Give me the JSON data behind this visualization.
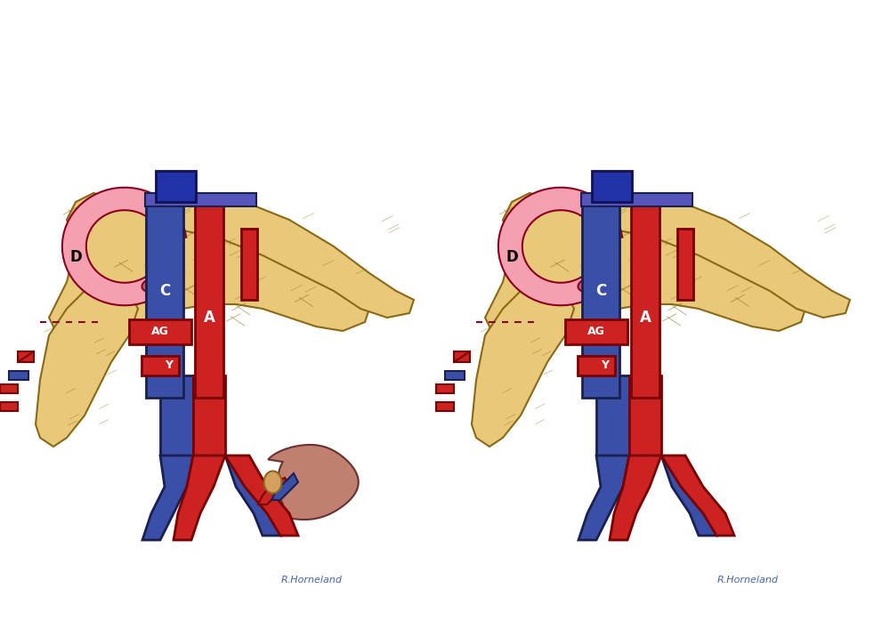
{
  "bg_color": "#ffffff",
  "fig_width": 10.0,
  "fig_height": 7.07,
  "dpi": 100,
  "pancreas_color": "#E8C97A",
  "pancreas_edge": "#8B6914",
  "duodenum_color": "#F4A0B0",
  "duodenum_edge": "#8B0020",
  "vena_cava_color": "#3A4FA8",
  "vena_cava_edge": "#1A2050",
  "aorta_color": "#CC2222",
  "aorta_edge": "#7A0000",
  "kidney_color": "#C08070",
  "kidney_edge": "#6B3030",
  "ag_label_color": "#ffffff",
  "ag_bg_color": "#CC2222",
  "y_label_color": "#ffffff",
  "y_bg_color": "#CC2222",
  "c_label_color": "#000000",
  "a_label_color": "#000000",
  "d_label_color": "#000000",
  "signature_color": "#4466BB",
  "signature_text": "R.Horneland",
  "label_D_left": "D",
  "label_C_left": "C",
  "label_A_left": "A",
  "label_AG_left": "AG",
  "label_Y_left": "Y",
  "label_D_right": "D",
  "label_C_right": "C",
  "label_A_right": "A",
  "label_AG_right": "AG",
  "label_Y_right": "Y"
}
